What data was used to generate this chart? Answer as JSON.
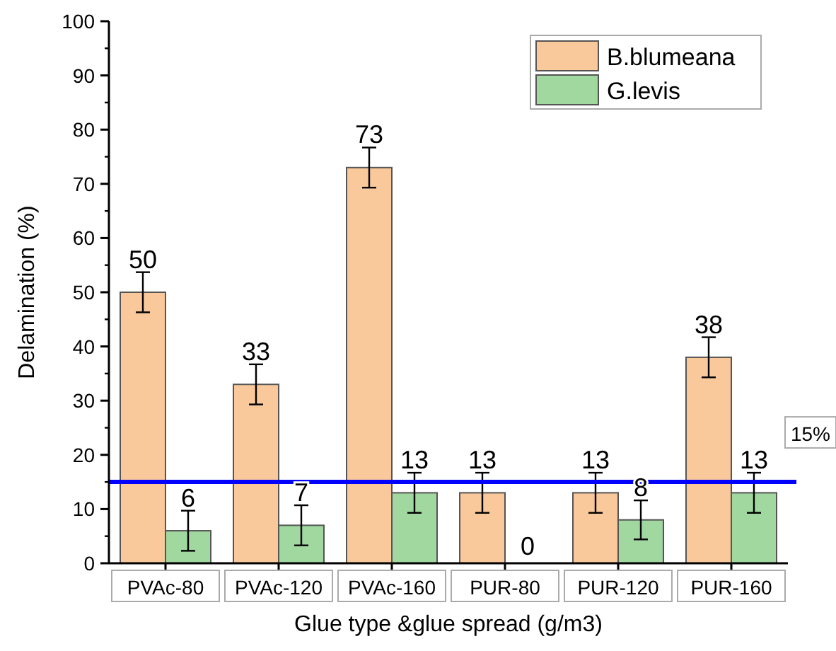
{
  "chart_data": {
    "type": "bar",
    "xlabel": "Glue type &glue spread (g/m3)",
    "ylabel": "Delamination (%)",
    "categories": [
      "PVAc-80",
      "PVAc-120",
      "PVAc-160",
      "PUR-80",
      "PUR-120",
      "PUR-160"
    ],
    "series": [
      {
        "name": "B.blumeana",
        "color": "#f9c89b",
        "values": [
          50,
          33,
          73,
          13,
          13,
          38
        ],
        "errors": [
          3.7,
          3.7,
          3.7,
          3.7,
          3.7,
          3.7
        ]
      },
      {
        "name": "G.levis",
        "color": "#a0d8a0",
        "values": [
          6,
          7,
          13,
          0,
          8,
          13
        ],
        "errors": [
          3.7,
          3.7,
          3.7,
          null,
          3.6,
          3.7
        ]
      }
    ],
    "data_labels": true,
    "ylim": [
      0,
      100
    ],
    "yticks": [
      0,
      10,
      20,
      30,
      40,
      50,
      60,
      70,
      80,
      90,
      100
    ],
    "ref_lines": [
      {
        "axis": "y",
        "value": 15,
        "label": "15%",
        "color": "#0000ff"
      }
    ],
    "grid": false,
    "legend": "top right"
  }
}
